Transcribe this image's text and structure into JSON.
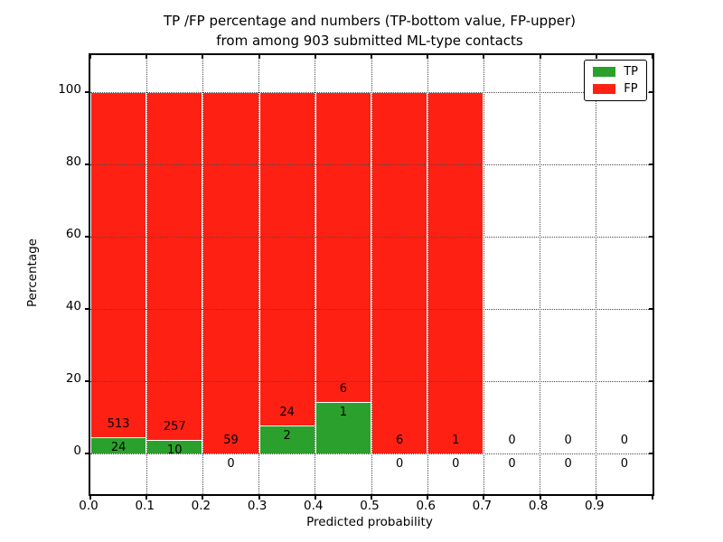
{
  "header": {
    "title_line1": "TP /FP percentage and numbers (TP-bottom value, FP-upper)",
    "title_line2": "from among 903 submitted ML-type contacts"
  },
  "chart_data": {
    "type": "bar",
    "stacked": true,
    "title": "TP /FP percentage and numbers (TP-bottom value, FP-upper)\nfrom among 903 submitted ML-type contacts",
    "xlabel": "Predicted probability",
    "ylabel": "Percentage",
    "xlim": [
      0.0,
      1.0
    ],
    "ylim": [
      -11.25,
      110.25
    ],
    "grid": true,
    "legend_position": "upper right",
    "bin_width": 0.1,
    "total_contacts": 903,
    "annotation_rule": "TP count printed at bottom of each bin, FP count printed above it",
    "bins": [
      {
        "x_start": 0.0,
        "tp": 24,
        "fp": 513
      },
      {
        "x_start": 0.1,
        "tp": 10,
        "fp": 257
      },
      {
        "x_start": 0.2,
        "tp": 0,
        "fp": 59
      },
      {
        "x_start": 0.3,
        "tp": 2,
        "fp": 24
      },
      {
        "x_start": 0.4,
        "tp": 1,
        "fp": 6
      },
      {
        "x_start": 0.5,
        "tp": 0,
        "fp": 6
      },
      {
        "x_start": 0.6,
        "tp": 0,
        "fp": 1
      },
      {
        "x_start": 0.7,
        "tp": 0,
        "fp": 0
      },
      {
        "x_start": 0.8,
        "tp": 0,
        "fp": 0
      },
      {
        "x_start": 0.9,
        "tp": 0,
        "fp": 0
      }
    ],
    "series": [
      {
        "name": "TP",
        "color": "#2ca02c"
      },
      {
        "name": "FP",
        "color": "#ff2014"
      }
    ],
    "xticks": [
      "0.0",
      "0.1",
      "0.2",
      "0.3",
      "0.4",
      "0.5",
      "0.6",
      "0.7",
      "0.8",
      "0.9"
    ],
    "yticks": [
      0,
      20,
      40,
      60,
      80,
      100
    ]
  },
  "colors": {
    "tp": "#2ca02c",
    "fp": "#ff2014",
    "grid": "#4a4a4a",
    "axis": "#000000",
    "background": "#ffffff"
  }
}
